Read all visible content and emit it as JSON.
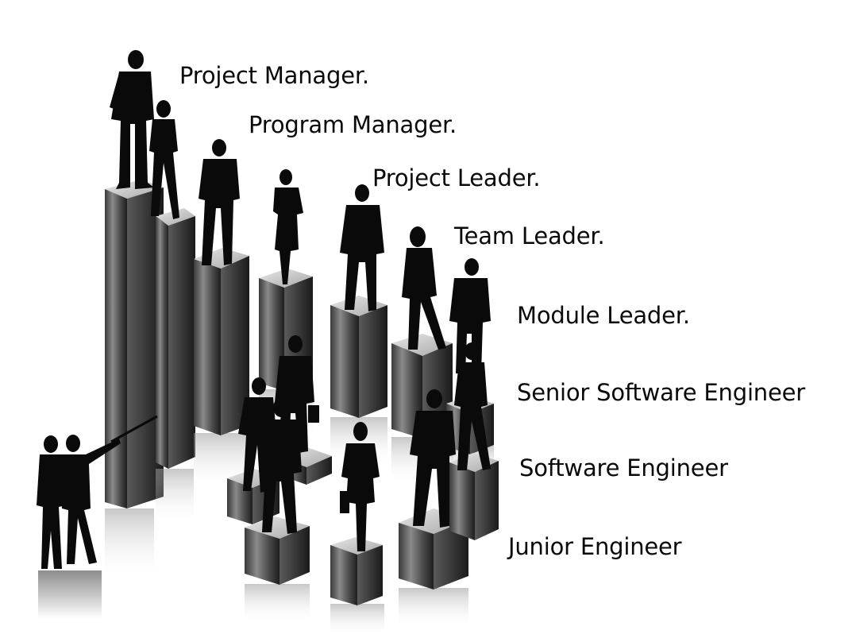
{
  "roles": [
    {
      "label": "Project Manager."
    },
    {
      "label": "Program Manager."
    },
    {
      "label": "Project Leader."
    },
    {
      "label": "Team Leader."
    },
    {
      "label": "Module Leader."
    },
    {
      "label": "Senior Software Engineer"
    },
    {
      "label": "Software Engineer"
    },
    {
      "label": "Junior Engineer"
    }
  ],
  "colors": {
    "background": "#ffffff",
    "silhouette": "#0a0a0a",
    "pillar_light": "#d9d9d9",
    "pillar_mid": "#6e6e6e",
    "pillar_dark": "#262626"
  }
}
